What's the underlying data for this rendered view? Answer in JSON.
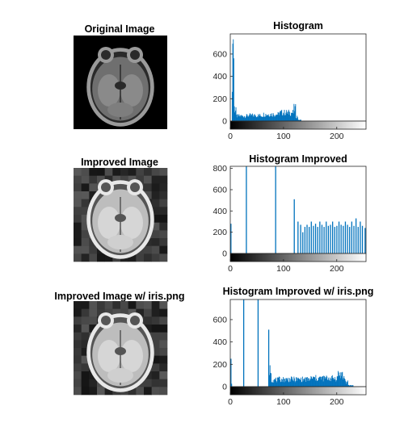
{
  "figure": {
    "panels": [
      {
        "title": "Original Image",
        "kind": "image",
        "variant": "original"
      },
      {
        "title": "Histogram",
        "kind": "histogram",
        "chart_index": 0
      },
      {
        "title": "Improved Image",
        "kind": "image",
        "variant": "improved"
      },
      {
        "title": "Histogram Improved",
        "kind": "histogram",
        "chart_index": 1
      },
      {
        "title": "Improved Image w/ iris.png",
        "kind": "image",
        "variant": "improved"
      },
      {
        "title": "Histogram Improved w/ iris.png",
        "kind": "histogram",
        "chart_index": 2
      }
    ]
  },
  "colors": {
    "bar": "#0072BD",
    "axis": "#262626",
    "image_bg": "#000000"
  },
  "chart_data": [
    {
      "type": "bar",
      "title": "Histogram",
      "xlim": [
        0,
        255
      ],
      "ylim": [
        0,
        780
      ],
      "xticks": [
        0,
        100,
        200
      ],
      "yticks": [
        0,
        200,
        400,
        600
      ],
      "colorbar": "grayscale",
      "series": [
        {
          "values_by_range": [
            {
              "from": 0,
              "to": 2,
              "value": 0
            },
            {
              "from": 3,
              "to": 3,
              "value": 250
            },
            {
              "from": 4,
              "to": 4,
              "value": 770
            },
            {
              "from": 5,
              "to": 5,
              "value": 760
            },
            {
              "from": 6,
              "to": 6,
              "value": 510
            },
            {
              "from": 7,
              "to": 7,
              "value": 180
            },
            {
              "from": 8,
              "to": 10,
              "value": 90
            },
            {
              "from": 11,
              "to": 30,
              "value": 45
            },
            {
              "from": 31,
              "to": 60,
              "value": 50
            },
            {
              "from": 61,
              "to": 90,
              "value": 60
            },
            {
              "from": 91,
              "to": 118,
              "value": 75
            },
            {
              "from": 119,
              "to": 122,
              "value": 110
            },
            {
              "from": 123,
              "to": 126,
              "value": 40
            },
            {
              "from": 127,
              "to": 132,
              "value": 10
            },
            {
              "from": 133,
              "to": 255,
              "value": 0
            }
          ]
        }
      ]
    },
    {
      "type": "bar",
      "title": "Histogram Improved",
      "xlim": [
        0,
        255
      ],
      "ylim": [
        0,
        820
      ],
      "xticks": [
        0,
        100,
        200
      ],
      "yticks": [
        0,
        200,
        400,
        600,
        800
      ],
      "colorbar": "grayscale",
      "series": [
        {
          "bars": [
            [
              1,
              280
            ],
            [
              30,
              820
            ],
            [
              85,
              820
            ],
            [
              120,
              510
            ],
            [
              127,
              300
            ],
            [
              132,
              270
            ],
            [
              136,
              200
            ],
            [
              140,
              250
            ],
            [
              144,
              270
            ],
            [
              148,
              250
            ],
            [
              152,
              300
            ],
            [
              156,
              260
            ],
            [
              160,
              280
            ],
            [
              164,
              250
            ],
            [
              168,
              300
            ],
            [
              172,
              270
            ],
            [
              176,
              250
            ],
            [
              180,
              300
            ],
            [
              184,
              260
            ],
            [
              188,
              270
            ],
            [
              192,
              300
            ],
            [
              196,
              250
            ],
            [
              200,
              260
            ],
            [
              204,
              300
            ],
            [
              208,
              270
            ],
            [
              212,
              260
            ],
            [
              216,
              300
            ],
            [
              220,
              270
            ],
            [
              224,
              250
            ],
            [
              228,
              300
            ],
            [
              232,
              260
            ],
            [
              236,
              330
            ],
            [
              240,
              250
            ],
            [
              244,
              300
            ],
            [
              248,
              260
            ],
            [
              253,
              240
            ]
          ]
        }
      ]
    },
    {
      "type": "bar",
      "title": "Histogram Improved w/ iris.png",
      "xlim": [
        0,
        255
      ],
      "ylim": [
        0,
        780
      ],
      "xticks": [
        0,
        100,
        200
      ],
      "yticks": [
        0,
        200,
        400,
        600
      ],
      "colorbar": "grayscale",
      "series": [
        {
          "bars": [
            [
              1,
              250
            ],
            [
              25,
              780
            ],
            [
              52,
              780
            ],
            [
              72,
              510
            ]
          ]
        },
        {
          "values_by_range": [
            {
              "from": 0,
              "to": 0,
              "value": 0
            },
            {
              "from": 2,
              "to": 2,
              "value": 20
            },
            {
              "from": 73,
              "to": 76,
              "value": 150
            },
            {
              "from": 77,
              "to": 90,
              "value": 60
            },
            {
              "from": 91,
              "to": 150,
              "value": 65
            },
            {
              "from": 151,
              "to": 200,
              "value": 75
            },
            {
              "from": 201,
              "to": 210,
              "value": 110
            },
            {
              "from": 211,
              "to": 215,
              "value": 80
            },
            {
              "from": 216,
              "to": 220,
              "value": 40
            },
            {
              "from": 221,
              "to": 230,
              "value": 12
            }
          ]
        }
      ]
    }
  ]
}
